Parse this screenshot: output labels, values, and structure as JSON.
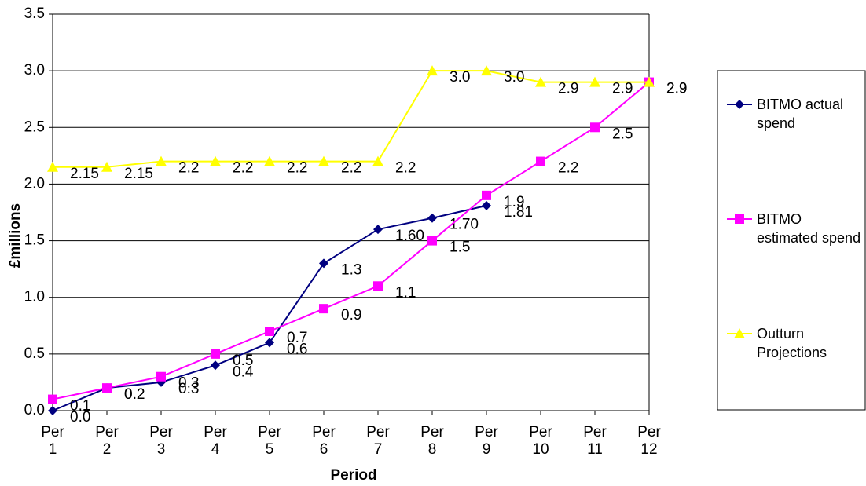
{
  "chart_data": {
    "type": "line",
    "x_label": "Period",
    "y_label": "£millions",
    "categories": [
      "Per 1",
      "Per 2",
      "Per 3",
      "Per 4",
      "Per 5",
      "Per 6",
      "Per 7",
      "Per 8",
      "Per 9",
      "Per 10",
      "Per 11",
      "Per 12"
    ],
    "ylim": [
      0,
      3.5
    ],
    "yticks": [
      {
        "value": 0,
        "label": "0.0"
      },
      0.5,
      {
        "value": 1,
        "label": "1.0"
      },
      1.5,
      {
        "value": 2,
        "label": "2.0"
      },
      2.5,
      {
        "value": 3,
        "label": "3.0"
      },
      3.5
    ],
    "grid": true,
    "series": [
      {
        "name": "BITMO actual spend",
        "color": "#000080",
        "marker": "diamond",
        "values": [
          0,
          0.2,
          0.25,
          0.4,
          0.6,
          1.3,
          1.6,
          1.7,
          1.81,
          null,
          null,
          null
        ],
        "value_labels": [
          "0.0",
          "0.2",
          "0.3",
          "0.4",
          "0.6",
          "1.3",
          "1.60",
          "1.70",
          "1.81",
          null,
          null,
          null
        ]
      },
      {
        "name": "BITMO estimated spend",
        "color": "#ff00ff",
        "marker": "square",
        "values": [
          0.1,
          0.2,
          0.3,
          0.5,
          0.7,
          0.9,
          1.1,
          1.5,
          1.9,
          2.2,
          2.5,
          2.9
        ]
      },
      {
        "name": "Outturn Projections",
        "color": "#ffff00",
        "marker": "triangle",
        "values": [
          2.15,
          2.15,
          2.2,
          2.2,
          2.2,
          2.2,
          2.2,
          3,
          3,
          2.9,
          2.9,
          2.9
        ],
        "value_labels": [
          "2.15",
          "2.15",
          "2.2",
          "2.2",
          "2.2",
          "2.2",
          "2.2",
          "3.0",
          "3.0",
          "2.9",
          "2.9",
          "2.9"
        ]
      }
    ]
  }
}
